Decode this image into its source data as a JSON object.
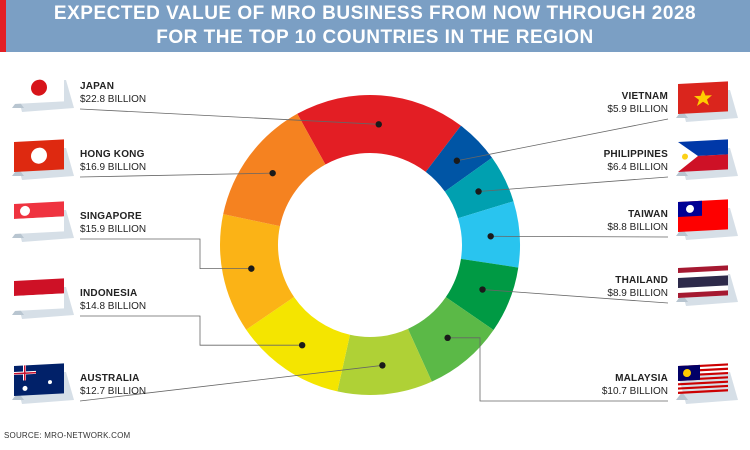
{
  "header": {
    "title_line1": "EXPECTED VALUE OF MRO BUSINESS FROM NOW THROUGH 2028",
    "title_line2": "FOR THE TOP 10 COUNTRIES IN THE REGION",
    "background_color": "#7b9fc4",
    "accent_color": "#e31e24"
  },
  "chart_data": {
    "type": "pie",
    "subtype": "donut",
    "title": "EXPECTED VALUE OF MRO BUSINESS FROM NOW THROUGH 2028 FOR THE TOP 10 COUNTRIES IN THE REGION",
    "unit": "BILLION",
    "categories": [
      "JAPAN",
      "VIETNAM",
      "PHILIPPINES",
      "TAIWAN",
      "THAILAND",
      "MALAYSIA",
      "AUSTRALIA",
      "INDONESIA",
      "SINGAPORE",
      "HONG KONG"
    ],
    "values": [
      22.8,
      5.9,
      6.4,
      8.8,
      8.9,
      10.7,
      12.7,
      14.8,
      15.9,
      16.9
    ],
    "value_labels": [
      "$22.8 BILLION",
      "$5.9 BILLION",
      "$6.4 BILLION",
      "$8.8 BILLION",
      "$8.9 BILLION",
      "$10.7 BILLION",
      "$12.7 BILLION",
      "$14.8 BILLION",
      "$15.9 BILLION",
      "$16.9 BILLION"
    ],
    "colors": [
      "#e31e24",
      "#0055a5",
      "#00a0b0",
      "#29c4ef",
      "#009a44",
      "#5bb947",
      "#afd136",
      "#f4e500",
      "#fbb316",
      "#f58220"
    ],
    "flag_icons": [
      "japan-flag-icon",
      "vietnam-flag-icon",
      "philippines-flag-icon",
      "taiwan-flag-icon",
      "thailand-flag-icon",
      "malaysia-flag-icon",
      "australia-flag-icon",
      "indonesia-flag-icon",
      "singapore-flag-icon",
      "hong-kong-flag-icon"
    ],
    "label_side": [
      "left",
      "right",
      "right",
      "right",
      "right",
      "right",
      "left",
      "left",
      "left",
      "left"
    ]
  },
  "source": "SOURCE: MRO-NETWORK.COM"
}
